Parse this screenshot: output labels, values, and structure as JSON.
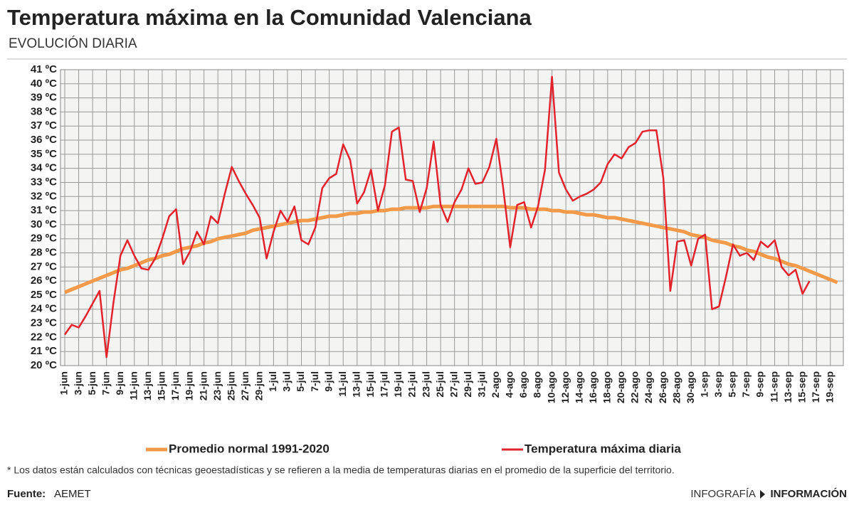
{
  "chart_data": {
    "type": "line",
    "title": "Temperatura máxima en la Comunidad Valenciana",
    "subtitle": "EVOLUCIÓN DIARIA",
    "footnote": "* Los datos están calculados con técnicas geoestadísticas y se refieren a la media de temperaturas diarias en el promedio de la superficie del territorio.",
    "source_label": "Fuente:",
    "source": "AEMET",
    "credit": "INFOGRAFÍA",
    "brand": "INFORMACIÓN",
    "categories": [
      "1-jun",
      null,
      "3-jun",
      null,
      "5-jun",
      null,
      "7-jun",
      null,
      "9-jun",
      null,
      "11-jun",
      null,
      "13-jun",
      null,
      "15-jun",
      null,
      "17-jun",
      null,
      "19-jun",
      null,
      "21-jun",
      null,
      "23-jun",
      null,
      "25-jun",
      null,
      "27-jun",
      null,
      "29-jun",
      null,
      "1-jul",
      null,
      "3-jul",
      null,
      "5-jul",
      null,
      "7-jul",
      null,
      "9-jul",
      null,
      "11-jul",
      null,
      "13-jul",
      null,
      "15-jul",
      null,
      "17-jul",
      null,
      "19-jul",
      null,
      "21-jul",
      null,
      "23-jul",
      null,
      "25-jul",
      null,
      "27-jul",
      null,
      "29-jul",
      null,
      "31-jul",
      null,
      "2-ago",
      null,
      "4-ago",
      null,
      "6-ago",
      null,
      "8-ago",
      null,
      "10-ago",
      null,
      "12-ago",
      null,
      "14-ago",
      null,
      "16-ago",
      null,
      "18-ago",
      null,
      "20-ago",
      null,
      "22-ago",
      null,
      "24-ago",
      null,
      "26-ago",
      null,
      "28-ago",
      null,
      "30-ago",
      null,
      "1-sep",
      null,
      "3-sep",
      null,
      "5-sep",
      null,
      "7-sep",
      null,
      "9-sep",
      null,
      "11-sep",
      null,
      "13-sep",
      null,
      "15-sep",
      null,
      "17-sep",
      null,
      "19-sep",
      null
    ],
    "series": [
      {
        "name": "Promedio normal 1991-2020",
        "color": "#f39a4a",
        "values": [
          25.2,
          25.4,
          25.6,
          25.8,
          26.0,
          26.2,
          26.4,
          26.6,
          26.8,
          26.9,
          27.1,
          27.3,
          27.5,
          27.6,
          27.8,
          27.9,
          28.1,
          28.3,
          28.4,
          28.5,
          28.7,
          28.8,
          29.0,
          29.1,
          29.2,
          29.3,
          29.4,
          29.6,
          29.7,
          29.8,
          29.9,
          30.0,
          30.1,
          30.2,
          30.3,
          30.3,
          30.4,
          30.5,
          30.6,
          30.6,
          30.7,
          30.8,
          30.8,
          30.9,
          30.9,
          31.0,
          31.0,
          31.1,
          31.1,
          31.2,
          31.2,
          31.2,
          31.2,
          31.3,
          31.3,
          31.3,
          31.3,
          31.3,
          31.3,
          31.3,
          31.3,
          31.3,
          31.3,
          31.3,
          31.2,
          31.2,
          31.2,
          31.1,
          31.1,
          31.1,
          31.0,
          31.0,
          30.9,
          30.9,
          30.8,
          30.7,
          30.7,
          30.6,
          30.5,
          30.5,
          30.4,
          30.3,
          30.2,
          30.1,
          30.0,
          29.9,
          29.8,
          29.7,
          29.6,
          29.5,
          29.3,
          29.2,
          29.1,
          28.9,
          28.8,
          28.7,
          28.5,
          28.4,
          28.2,
          28.1,
          27.9,
          27.7,
          27.6,
          27.4,
          27.2,
          27.1,
          26.9,
          26.7,
          26.5,
          26.3,
          26.1,
          25.9
        ]
      },
      {
        "name": "Temperatura máxima diaria",
        "color": "#e3232c",
        "values": [
          22.2,
          22.9,
          22.7,
          23.5,
          24.4,
          25.3,
          20.6,
          24.5,
          27.8,
          28.9,
          27.8,
          26.9,
          26.8,
          27.6,
          29.0,
          30.6,
          31.1,
          27.2,
          28.1,
          29.5,
          28.6,
          30.6,
          30.1,
          32.2,
          34.1,
          33.1,
          32.2,
          31.4,
          30.5,
          27.6,
          29.5,
          31.0,
          30.2,
          31.3,
          28.9,
          28.6,
          29.8,
          32.6,
          33.3,
          33.6,
          35.7,
          34.6,
          31.5,
          32.3,
          33.9,
          31.0,
          32.8,
          36.6,
          36.9,
          33.2,
          33.1,
          30.9,
          32.6,
          35.9,
          31.4,
          30.2,
          31.6,
          32.5,
          34.0,
          32.9,
          33.0,
          34.1,
          36.1,
          32.6,
          28.4,
          31.4,
          31.6,
          29.8,
          31.3,
          33.9,
          40.5,
          33.7,
          32.5,
          31.7,
          32.0,
          32.2,
          32.5,
          33.0,
          34.3,
          35.0,
          34.7,
          35.5,
          35.8,
          36.6,
          36.7,
          36.7,
          33.3,
          25.3,
          28.8,
          28.9,
          27.1,
          29.0,
          29.3,
          24.0,
          24.2,
          26.3,
          28.6,
          27.8,
          28.0,
          27.5,
          28.8,
          28.4,
          28.9,
          27.0,
          26.4,
          26.8,
          25.1,
          26.0,
          null,
          null,
          null,
          null
        ]
      }
    ],
    "ylim": [
      20,
      41
    ],
    "yticks": [
      {
        "value": 20,
        "label": "20 ºC"
      },
      {
        "value": 21,
        "label": "21 ºC"
      },
      {
        "value": 22,
        "label": "22 ºC"
      },
      {
        "value": 23,
        "label": "23 ºC"
      },
      {
        "value": 24,
        "label": "24 ºC"
      },
      {
        "value": 25,
        "label": "25 ºC"
      },
      {
        "value": 26,
        "label": "26 ºC"
      },
      {
        "value": 27,
        "label": "27 ºC"
      },
      {
        "value": 28,
        "label": "28 ºC"
      },
      {
        "value": 29,
        "label": "29 ºC"
      },
      {
        "value": 30,
        "label": "30 ºC"
      },
      {
        "value": 31,
        "label": "31 ºC"
      },
      {
        "value": 32,
        "label": "32 ºC"
      },
      {
        "value": 33,
        "label": "33 ºC"
      },
      {
        "value": 34,
        "label": "34 ºC"
      },
      {
        "value": 35,
        "label": "35 ºC"
      },
      {
        "value": 36,
        "label": "36 ºC"
      },
      {
        "value": 37,
        "label": "37 ºC"
      },
      {
        "value": 38,
        "label": "38 ºC"
      },
      {
        "value": 39,
        "label": "39 ºC"
      },
      {
        "value": 40,
        "label": "40 ºC"
      },
      {
        "value": 41,
        "label": "41 ºC"
      }
    ],
    "grid": true,
    "legend": "bottom"
  }
}
